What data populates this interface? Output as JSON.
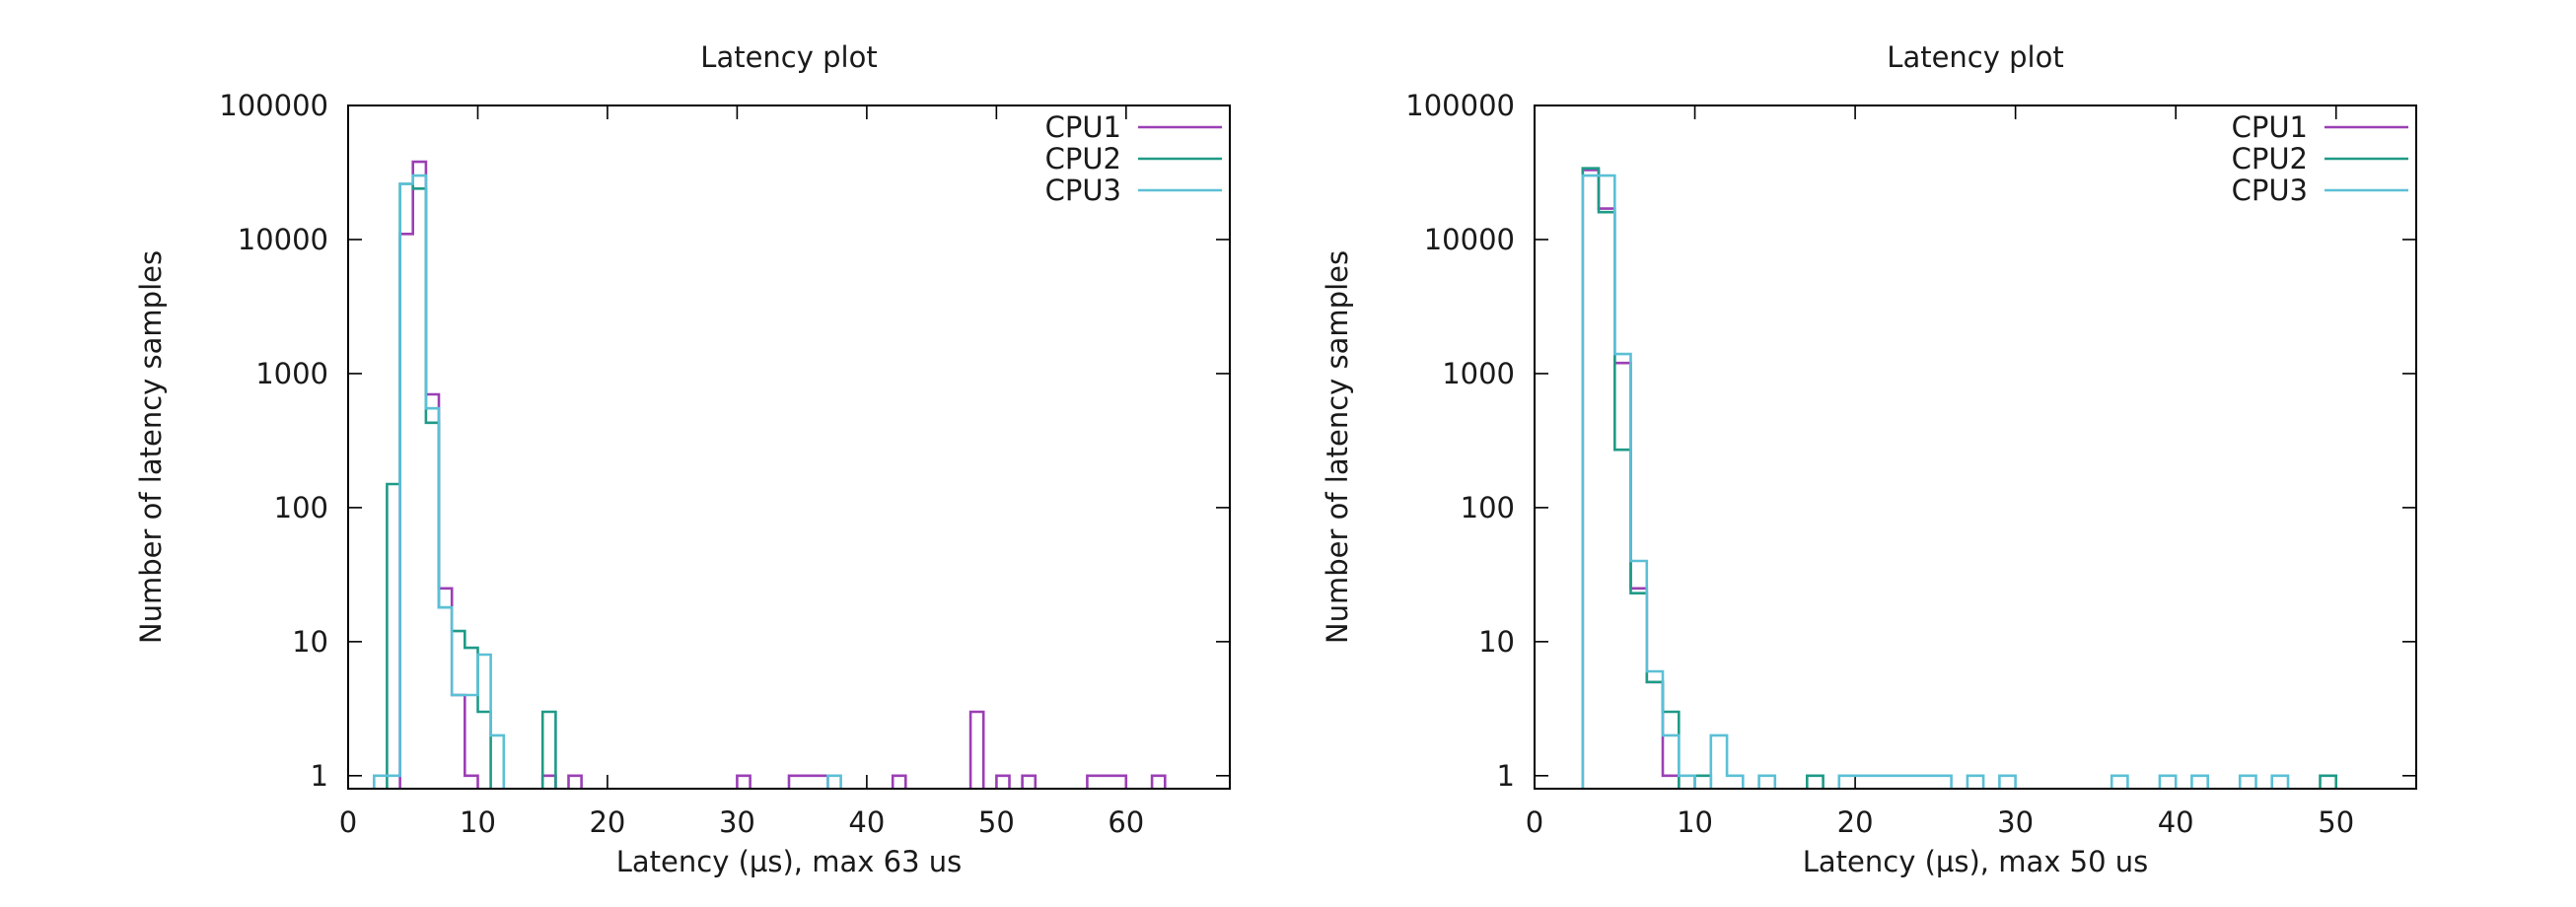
{
  "chart_data": [
    {
      "type": "histogram",
      "title": "Latency plot",
      "xlabel": "Latency (µs), max 63 us",
      "ylabel": "Number of latency samples",
      "xscale": "linear",
      "yscale": "log",
      "xlim": [
        0,
        68
      ],
      "ylim": [
        0.8,
        100000
      ],
      "xticks": [
        0,
        10,
        20,
        30,
        40,
        50,
        60
      ],
      "yticks": [
        1,
        10,
        100,
        1000,
        10000,
        100000
      ],
      "bin_width": 1,
      "legend_position": "top-right",
      "series": [
        {
          "name": "CPU1",
          "color": "#9b3fb5",
          "points": [
            [
              4,
              11000
            ],
            [
              5,
              38000
            ],
            [
              6,
              700
            ],
            [
              7,
              25
            ],
            [
              8,
              4
            ],
            [
              9,
              1
            ],
            [
              15,
              1
            ],
            [
              17,
              1
            ],
            [
              30,
              1
            ],
            [
              34,
              1
            ],
            [
              35,
              1
            ],
            [
              36,
              1
            ],
            [
              42,
              1
            ],
            [
              48,
              3
            ],
            [
              50,
              1
            ],
            [
              52,
              1
            ],
            [
              57,
              1
            ],
            [
              58,
              1
            ],
            [
              59,
              1
            ],
            [
              62,
              1
            ]
          ]
        },
        {
          "name": "CPU2",
          "color": "#1f9a87",
          "points": [
            [
              3,
              150
            ],
            [
              4,
              26000
            ],
            [
              5,
              24000
            ],
            [
              6,
              430
            ],
            [
              7,
              18
            ],
            [
              8,
              12
            ],
            [
              9,
              9
            ],
            [
              10,
              3
            ],
            [
              15,
              3
            ]
          ]
        },
        {
          "name": "CPU3",
          "color": "#5bc0d6",
          "points": [
            [
              2,
              1
            ],
            [
              3,
              1
            ],
            [
              4,
              26000
            ],
            [
              5,
              30000
            ],
            [
              6,
              550
            ],
            [
              7,
              18
            ],
            [
              8,
              4
            ],
            [
              9,
              4
            ],
            [
              10,
              8
            ],
            [
              11,
              2
            ],
            [
              37,
              1
            ]
          ]
        }
      ]
    },
    {
      "type": "histogram",
      "title": "Latency plot",
      "xlabel": "Latency (µs), max 50 us",
      "ylabel": "Number of latency samples",
      "xscale": "linear",
      "yscale": "log",
      "xlim": [
        0,
        55
      ],
      "ylim": [
        0.8,
        100000
      ],
      "xticks": [
        0,
        10,
        20,
        30,
        40,
        50
      ],
      "yticks": [
        1,
        10,
        100,
        1000,
        10000,
        100000
      ],
      "bin_width": 1,
      "legend_position": "top-right",
      "series": [
        {
          "name": "CPU1",
          "color": "#9b3fb5",
          "points": [
            [
              3,
              33000
            ],
            [
              4,
              17000
            ],
            [
              5,
              1200
            ],
            [
              6,
              25
            ],
            [
              7,
              5
            ],
            [
              8,
              1
            ]
          ]
        },
        {
          "name": "CPU2",
          "color": "#1f9a87",
          "points": [
            [
              3,
              34000
            ],
            [
              4,
              16000
            ],
            [
              5,
              270
            ],
            [
              6,
              23
            ],
            [
              7,
              5
            ],
            [
              8,
              3
            ],
            [
              10,
              1
            ],
            [
              17,
              1
            ],
            [
              49,
              1
            ]
          ]
        },
        {
          "name": "CPU3",
          "color": "#5bc0d6",
          "points": [
            [
              3,
              30000
            ],
            [
              4,
              30000
            ],
            [
              5,
              1400
            ],
            [
              6,
              40
            ],
            [
              7,
              6
            ],
            [
              8,
              2
            ],
            [
              9,
              1
            ],
            [
              11,
              2
            ],
            [
              12,
              1
            ],
            [
              14,
              1
            ],
            [
              19,
              1
            ],
            [
              20,
              1
            ],
            [
              21,
              1
            ],
            [
              22,
              1
            ],
            [
              23,
              1
            ],
            [
              24,
              1
            ],
            [
              25,
              1
            ],
            [
              27,
              1
            ],
            [
              29,
              1
            ],
            [
              36,
              1
            ],
            [
              39,
              1
            ],
            [
              41,
              1
            ],
            [
              44,
              1
            ],
            [
              46,
              1
            ]
          ]
        }
      ]
    }
  ]
}
